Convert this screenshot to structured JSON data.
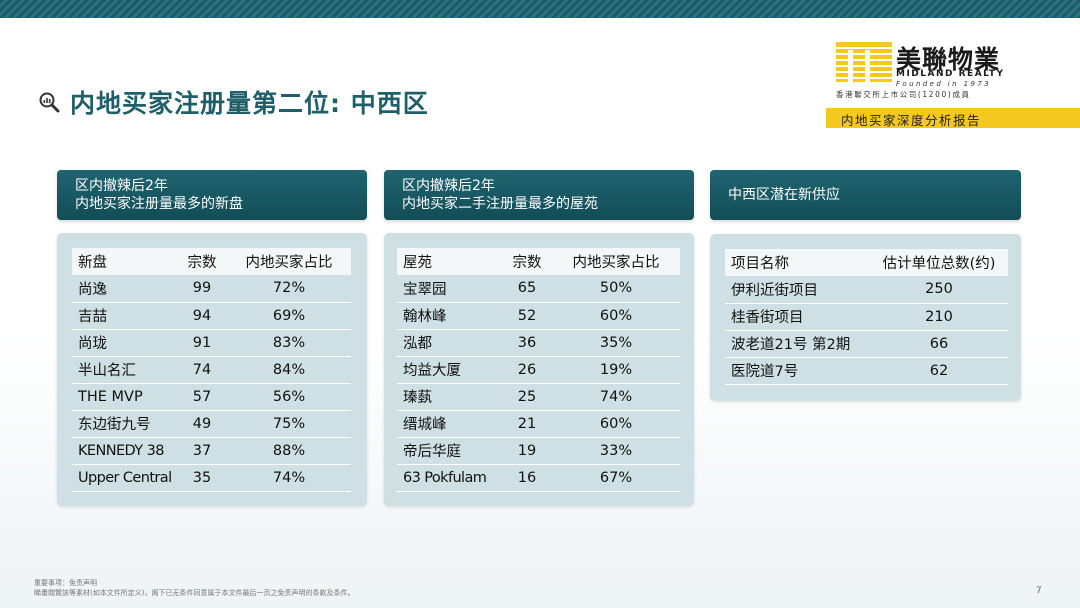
{
  "slide": {
    "title": "内地买家注册量第二位: 中西区",
    "page_number": "7"
  },
  "logo": {
    "chinese": "美聯物業",
    "english": "MIDLAND REALTY",
    "founded": "Founded in 1973",
    "subtitle": "香港聯交所上市公司(1200)成員"
  },
  "report_label": "内地买家深度分析报告",
  "panels": {
    "new": {
      "heading_line1": "区内撤辣后2年",
      "heading_line2": "内地买家注册量最多的新盘",
      "columns": [
        "新盘",
        "宗数",
        "内地买家占比"
      ],
      "rows": [
        [
          "尚逸",
          "99",
          "72%"
        ],
        [
          "吉喆",
          "94",
          "69%"
        ],
        [
          "尚珑",
          "91",
          "83%"
        ],
        [
          "半山名汇",
          "74",
          "84%"
        ],
        [
          "THE MVP",
          "57",
          "56%"
        ],
        [
          "东边街九号",
          "49",
          "75%"
        ],
        [
          "KENNEDY 38",
          "37",
          "88%"
        ],
        [
          "Upper Central",
          "35",
          "74%"
        ]
      ]
    },
    "secondary": {
      "heading_line1": "区内撤辣后2年",
      "heading_line2": "内地买家二手注册量最多的屋苑",
      "columns": [
        "屋苑",
        "宗数",
        "内地买家占比"
      ],
      "rows": [
        [
          "宝翠园",
          "65",
          "50%"
        ],
        [
          "翰林峰",
          "52",
          "60%"
        ],
        [
          "泓都",
          "36",
          "35%"
        ],
        [
          "均益大厦",
          "26",
          "19%"
        ],
        [
          "瑧蓺",
          "25",
          "74%"
        ],
        [
          "缙城峰",
          "21",
          "60%"
        ],
        [
          "帝后华庭",
          "19",
          "33%"
        ],
        [
          "63 Pokfulam",
          "16",
          "67%"
        ]
      ]
    },
    "supply": {
      "heading": "中西区潜在新供应",
      "columns": [
        "项目名称",
        "估计单位总数(约)"
      ],
      "rows": [
        [
          "伊利近街项目",
          "250"
        ],
        [
          "桂香街项目",
          "210"
        ],
        [
          "波老道21号 第2期",
          "66"
        ],
        [
          "医院道7号",
          "62"
        ]
      ]
    }
  },
  "disclaimer": {
    "line1": "重要事项：免责声明",
    "line2": "睇畫閱覽該等素材(如本文件所定义)，阁下已无条件同意属于本文件最后一页之免责声明的条款及条件。"
  },
  "colors": {
    "teal_dark": "#134d57",
    "teal_title": "#1f5f6a",
    "panel_body": "#cfe0e4",
    "accent_yellow": "#f5c81f"
  }
}
